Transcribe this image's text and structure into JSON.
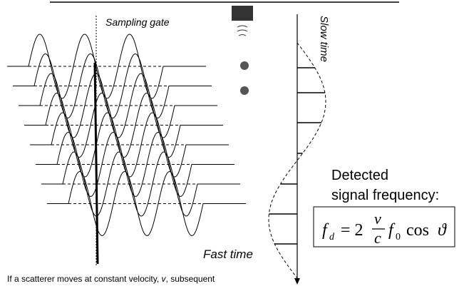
{
  "labels": {
    "sampling_gate": "Sampling gate",
    "slow_time": "Slow time",
    "fast_time": "Fast time"
  },
  "detected": {
    "line1": "Detected",
    "line2": "signal frequency:"
  },
  "formula": {
    "f": "f",
    "d": "d",
    "eq": "= 2",
    "v": "v",
    "c": "c",
    "f0": "f",
    "zero": "0",
    "cos": "cos",
    "theta": "ϑ"
  },
  "caption": {
    "before": "If a scatterer moves at constant velocity, ",
    "v": "v",
    "after": ", subsequent"
  }
}
